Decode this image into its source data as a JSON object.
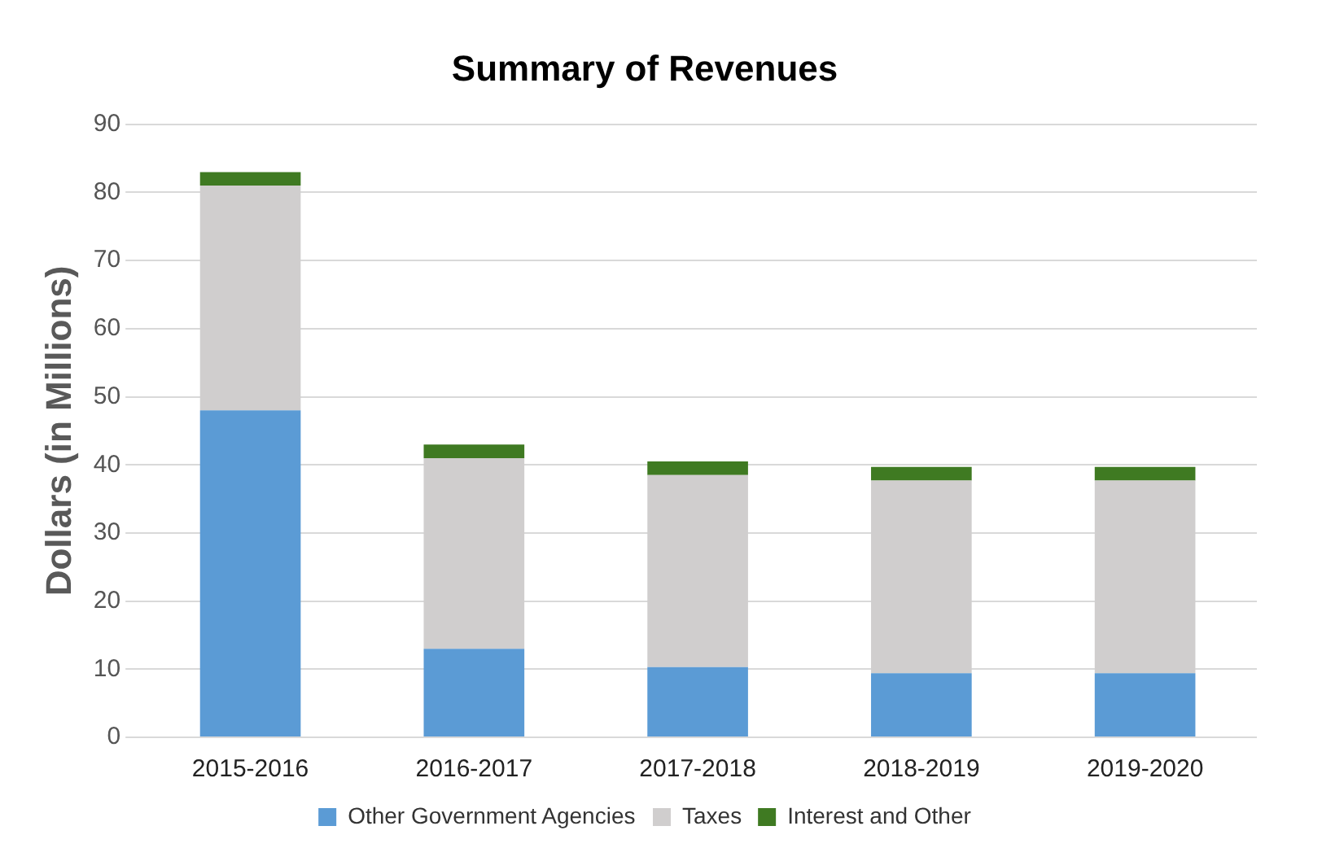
{
  "chart_data": {
    "type": "bar",
    "title": "Summary of Revenues",
    "ylabel": "Dollars (in Millions)",
    "stacked": true,
    "categories": [
      "2015-2016",
      "2016-2017",
      "2017-2018",
      "2018-2019",
      "2019-2020"
    ],
    "series": [
      {
        "name": "Other Government Agencies",
        "color": "#5b9bd5",
        "values": [
          48,
          13,
          10.3,
          9.4,
          9.4
        ]
      },
      {
        "name": "Taxes",
        "color": "#d0cece",
        "values": [
          33,
          28,
          28.2,
          28.3,
          28.3
        ]
      },
      {
        "name": "Interest and Other",
        "color": "#3f7a22",
        "values": [
          2,
          2,
          2,
          2,
          2
        ]
      }
    ],
    "ylim": [
      0,
      90
    ],
    "yticks": [
      0,
      10,
      20,
      30,
      40,
      50,
      60,
      70,
      80,
      90
    ],
    "grid": "y",
    "legend": "bottom"
  }
}
